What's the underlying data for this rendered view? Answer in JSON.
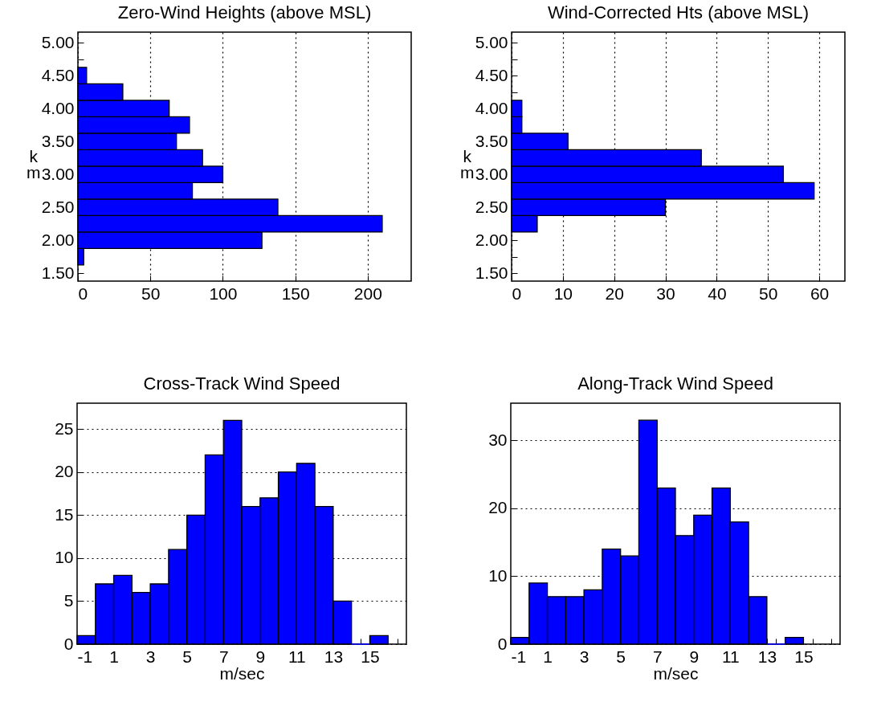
{
  "chart_data": [
    {
      "type": "histogram",
      "orientation": "horizontal",
      "title": "Zero-Wind Heights (above MSL)",
      "ylabel": "km",
      "color": "#0000ff",
      "bins": [
        1.625,
        1.875,
        2.125,
        2.375,
        2.625,
        2.875,
        3.125,
        3.375,
        3.625,
        3.875,
        4.125,
        4.375,
        4.625
      ],
      "values": [
        4,
        127,
        210,
        138,
        79,
        100,
        86,
        68,
        77,
        63,
        31,
        6
      ],
      "xlim": [
        0,
        230
      ],
      "xticks": [
        0,
        50,
        100,
        150,
        200
      ],
      "ylim": [
        1.38,
        5.16
      ],
      "yticks": [
        {
          "value": 1.5,
          "label": "1.50"
        },
        {
          "value": 1.75,
          "label": null
        },
        {
          "value": 2,
          "label": "2.00"
        },
        {
          "value": 2.25,
          "label": null
        },
        {
          "value": 2.5,
          "label": "2.50"
        },
        {
          "value": 2.75,
          "label": null
        },
        {
          "value": 3,
          "label": "3.00"
        },
        {
          "value": 3.25,
          "label": null
        },
        {
          "value": 3.5,
          "label": "3.50"
        },
        {
          "value": 3.75,
          "label": null
        },
        {
          "value": 4,
          "label": "4.00"
        },
        {
          "value": 4.25,
          "label": null
        },
        {
          "value": 4.5,
          "label": "4.50"
        },
        {
          "value": 4.75,
          "label": null
        },
        {
          "value": 5,
          "label": "5.00"
        }
      ],
      "grid": "x"
    },
    {
      "type": "histogram",
      "orientation": "horizontal",
      "title": "Wind-Corrected Hts (above MSL)",
      "ylabel": "km",
      "color": "#0000ff",
      "bins": [
        2.125,
        2.375,
        2.625,
        2.875,
        3.125,
        3.375,
        3.625,
        3.875,
        4.125
      ],
      "values": [
        5,
        30,
        59,
        53,
        37,
        11,
        2,
        2
      ],
      "xlim": [
        0,
        65
      ],
      "xticks": [
        0,
        10,
        20,
        30,
        40,
        50,
        60
      ],
      "ylim": [
        1.38,
        5.16
      ],
      "yticks": [
        {
          "value": 1.5,
          "label": "1.50"
        },
        {
          "value": 1.75,
          "label": null
        },
        {
          "value": 2,
          "label": "2.00"
        },
        {
          "value": 2.25,
          "label": null
        },
        {
          "value": 2.5,
          "label": "2.50"
        },
        {
          "value": 2.75,
          "label": null
        },
        {
          "value": 3,
          "label": "3.00"
        },
        {
          "value": 3.25,
          "label": null
        },
        {
          "value": 3.5,
          "label": "3.50"
        },
        {
          "value": 3.75,
          "label": null
        },
        {
          "value": 4,
          "label": "4.00"
        },
        {
          "value": 4.25,
          "label": null
        },
        {
          "value": 4.5,
          "label": "4.50"
        },
        {
          "value": 4.75,
          "label": null
        },
        {
          "value": 5,
          "label": "5.00"
        }
      ],
      "grid": "x"
    },
    {
      "type": "histogram",
      "title": "Cross-Track Wind Speed",
      "xlabel": "m/sec",
      "color": "#0000ff",
      "bins": [
        -1,
        0,
        1,
        2,
        3,
        4,
        5,
        6,
        7,
        8,
        9,
        10,
        11,
        12,
        13,
        14,
        15,
        16
      ],
      "values": [
        1,
        7,
        8,
        6,
        7,
        11,
        15,
        22,
        26,
        16,
        17,
        20,
        21,
        16,
        5,
        0,
        1
      ],
      "xlim": [
        -1,
        17
      ],
      "xticks": [
        -1,
        1,
        3,
        5,
        7,
        9,
        11,
        13,
        15,
        {
          "value": -0.5,
          "label": null
        },
        {
          "value": 0.5,
          "label": null
        },
        {
          "value": 1.5,
          "label": null
        },
        {
          "value": 2.5,
          "label": null
        },
        {
          "value": 3.5,
          "label": null
        },
        {
          "value": 4.5,
          "label": null
        },
        {
          "value": 5.5,
          "label": null
        },
        {
          "value": 6.5,
          "label": null
        },
        {
          "value": 7.5,
          "label": null
        },
        {
          "value": 8.5,
          "label": null
        },
        {
          "value": 9.5,
          "label": null
        },
        {
          "value": 10.5,
          "label": null
        },
        {
          "value": 11.5,
          "label": null
        },
        {
          "value": 12.5,
          "label": null
        },
        {
          "value": 13.5,
          "label": null
        },
        {
          "value": 14.5,
          "label": null
        },
        {
          "value": 15.5,
          "label": null
        },
        {
          "value": 16.5,
          "label": null
        }
      ],
      "ylim": [
        0,
        28
      ],
      "yticks": [
        0,
        5,
        10,
        15,
        20,
        25
      ],
      "grid": "y"
    },
    {
      "type": "histogram",
      "title": "Along-Track Wind Speed",
      "xlabel": "m/sec",
      "color": "#0000ff",
      "bins": [
        -1,
        0,
        1,
        2,
        3,
        4,
        5,
        6,
        7,
        8,
        9,
        10,
        11,
        12,
        13,
        14,
        15
      ],
      "values": [
        1,
        9,
        7,
        7,
        8,
        14,
        13,
        33,
        23,
        16,
        19,
        23,
        18,
        7,
        0,
        1
      ],
      "xlim": [
        -1,
        17
      ],
      "xticks": [
        -1,
        1,
        3,
        5,
        7,
        9,
        11,
        13,
        15,
        {
          "value": -0.5,
          "label": null
        },
        {
          "value": 0.5,
          "label": null
        },
        {
          "value": 1.5,
          "label": null
        },
        {
          "value": 2.5,
          "label": null
        },
        {
          "value": 3.5,
          "label": null
        },
        {
          "value": 4.5,
          "label": null
        },
        {
          "value": 5.5,
          "label": null
        },
        {
          "value": 6.5,
          "label": null
        },
        {
          "value": 7.5,
          "label": null
        },
        {
          "value": 8.5,
          "label": null
        },
        {
          "value": 9.5,
          "label": null
        },
        {
          "value": 10.5,
          "label": null
        },
        {
          "value": 11.5,
          "label": null
        },
        {
          "value": 12.5,
          "label": null
        },
        {
          "value": 13.5,
          "label": null
        },
        {
          "value": 14.5,
          "label": null
        },
        {
          "value": 15.5,
          "label": null
        },
        {
          "value": 16.5,
          "label": null
        }
      ],
      "ylim": [
        0,
        35.5
      ],
      "yticks": [
        0,
        10,
        20,
        30
      ],
      "grid": "y"
    }
  ]
}
